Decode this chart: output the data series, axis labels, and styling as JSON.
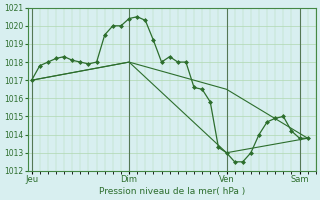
{
  "background_color": "#d8eff0",
  "grid_color": "#b0d8b0",
  "line_color": "#2d6e2d",
  "marker_color": "#2d6e2d",
  "xlabel": "Pression niveau de la mer( hPa )",
  "ylim": [
    1012,
    1021
  ],
  "yticks": [
    1012,
    1013,
    1014,
    1015,
    1016,
    1017,
    1018,
    1019,
    1020,
    1021
  ],
  "day_labels": [
    "Jeu",
    "Dim",
    "Ven",
    "Sam"
  ],
  "day_positions": [
    0,
    48,
    96,
    132
  ],
  "series1_x": [
    0,
    4,
    8,
    12,
    16,
    20,
    24,
    28,
    32,
    36,
    40,
    44,
    48,
    52,
    56,
    60,
    64,
    68,
    72,
    76,
    80,
    84,
    88,
    92,
    96,
    100,
    104,
    108,
    112,
    116,
    120,
    124,
    128,
    132,
    136
  ],
  "series1_y": [
    1017.0,
    1017.8,
    1018.0,
    1018.2,
    1018.3,
    1018.1,
    1018.0,
    1017.9,
    1018.0,
    1019.5,
    1020.0,
    1020.0,
    1020.4,
    1020.5,
    1020.3,
    1019.2,
    1018.0,
    1018.3,
    1018.0,
    1018.0,
    1016.6,
    1016.5,
    1015.8,
    1013.3,
    1013.0,
    1012.5,
    1012.5,
    1013.0,
    1014.0,
    1014.7,
    1014.9,
    1015.0,
    1014.2,
    1013.8,
    1013.8
  ],
  "series2_x": [
    0,
    48,
    96,
    136
  ],
  "series2_y": [
    1017.0,
    1018.0,
    1016.5,
    1013.8
  ],
  "series3_x": [
    0,
    48,
    96,
    136
  ],
  "series3_y": [
    1017.0,
    1018.0,
    1013.0,
    1013.8
  ]
}
